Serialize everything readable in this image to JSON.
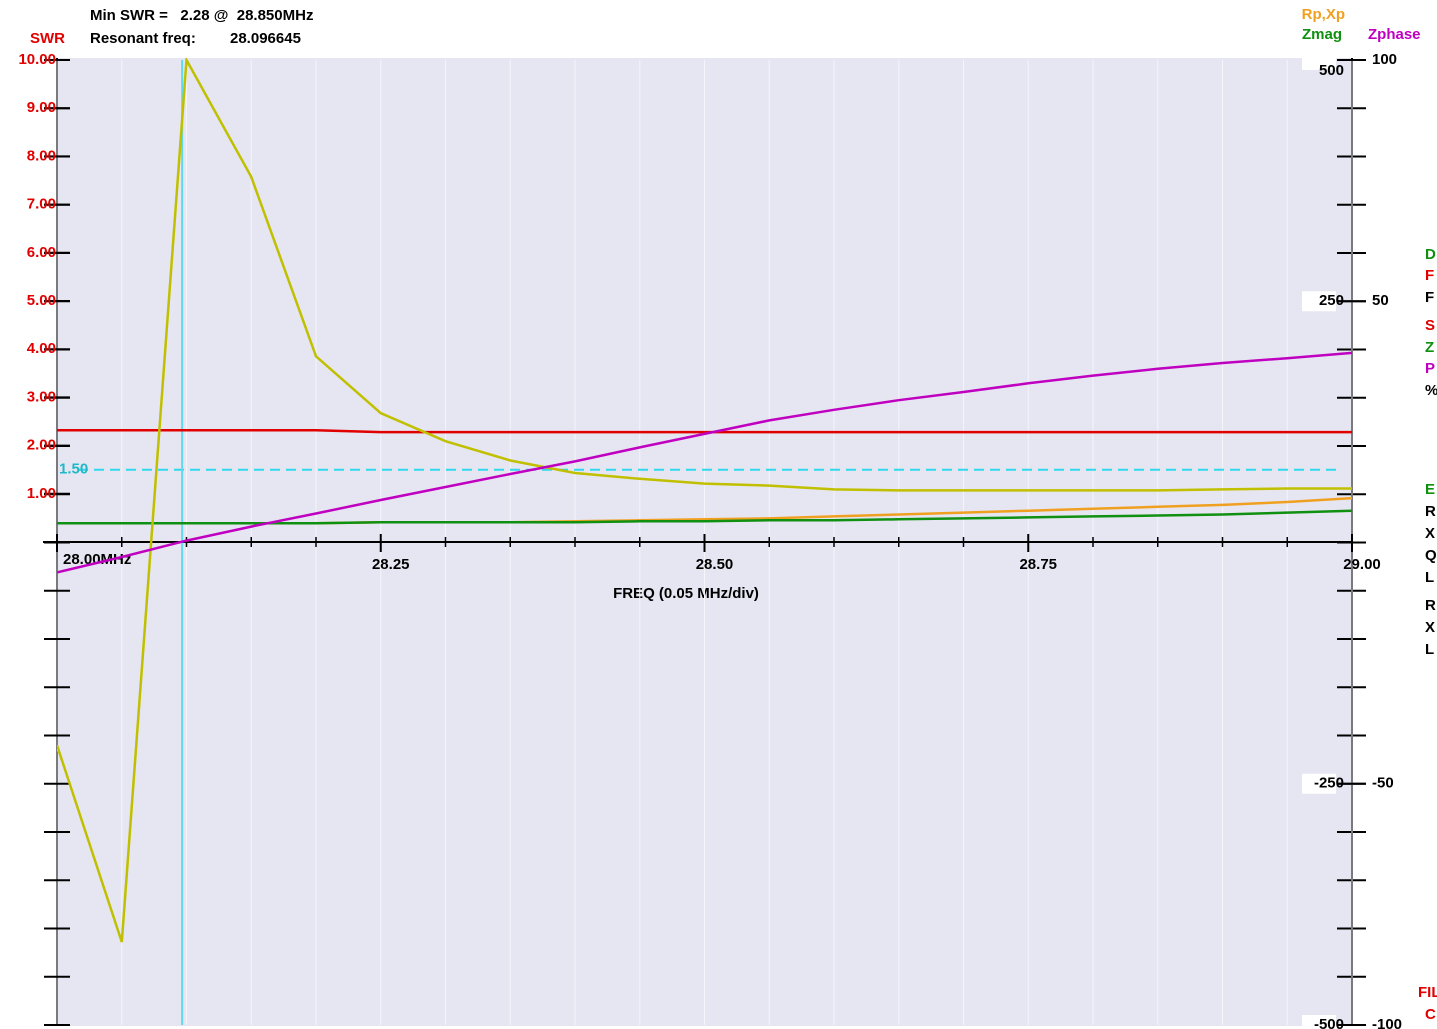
{
  "chart_data": {
    "type": "line",
    "min_swr_text": "Min SWR =   2.28 @  28.850MHz",
    "resonant_label": "Resonant freq:",
    "resonant_freq": 28.096645,
    "y_label": "SWR",
    "y2_label": "Rp,Xp",
    "y2_label_b": "Zmag",
    "y3_label": "Zphase",
    "x_label": "FREQ (0.05 MHz/div)",
    "x": [
      28.0,
      28.05,
      28.1,
      28.15,
      28.2,
      28.25,
      28.3,
      28.35,
      28.4,
      28.45,
      28.5,
      28.55,
      28.6,
      28.65,
      28.7,
      28.75,
      28.8,
      28.85,
      28.9,
      28.95,
      29.0
    ],
    "xlim": [
      28.0,
      29.0
    ],
    "xticks": [
      {
        "value": 28.0,
        "label": "28.00MHz"
      },
      28.25,
      {
        "value": 28.5,
        "label": "28.50"
      },
      28.75,
      {
        "value": 29.0,
        "label": "29.00"
      }
    ],
    "ylim": [
      0,
      10
    ],
    "yticks": [
      {
        "value": 1,
        "label": "1.00"
      },
      {
        "value": 2,
        "label": "2.00"
      },
      {
        "value": 3,
        "label": "3.00"
      },
      {
        "value": 4,
        "label": "4.00"
      },
      {
        "value": 5,
        "label": "5.00"
      },
      {
        "value": 6,
        "label": "6.00"
      },
      {
        "value": 7,
        "label": "7.00"
      },
      {
        "value": 8,
        "label": "8.00"
      },
      {
        "value": 9,
        "label": "9.00"
      },
      {
        "value": 10,
        "label": "10.00"
      }
    ],
    "y2lim": [
      -500,
      500
    ],
    "y2ticks": [
      -500,
      -250,
      250,
      500
    ],
    "y3lim": [
      -100,
      100
    ],
    "y3ticks": [
      -100,
      -50,
      50,
      100
    ],
    "reference": {
      "value": 1.5,
      "label": "1.50",
      "color": "#30d8ec"
    },
    "series": [
      {
        "name": "SWR",
        "color": "#e00000",
        "values": [
          2.32,
          2.32,
          2.32,
          2.32,
          2.32,
          2.28,
          2.28,
          2.28,
          2.28,
          2.28,
          2.28,
          2.28,
          2.28,
          2.28,
          2.28,
          2.28,
          2.28,
          2.28,
          2.28,
          2.28,
          2.28
        ]
      },
      {
        "color": "#f0a020",
        "axis": "y2",
        "values": [
          20,
          20,
          20,
          20,
          20,
          21,
          21,
          21,
          22,
          23,
          24,
          25,
          27,
          29,
          31,
          33,
          35,
          37,
          39,
          42,
          46
        ]
      },
      {
        "name": "Zmag",
        "color": "#109010",
        "axis": "y2",
        "values": [
          20,
          20,
          20,
          20,
          20,
          21,
          21,
          21,
          21,
          22,
          22,
          23,
          23,
          24,
          25,
          26,
          27,
          28,
          29,
          31,
          33
        ]
      },
      {
        "color": "#c0c000",
        "axis": "y2",
        "values": [
          -210,
          -414,
          500,
          379,
          193,
          134,
          105,
          85,
          72,
          66,
          61,
          59,
          55,
          54,
          54,
          54,
          54,
          54,
          55,
          56,
          56
        ]
      },
      {
        "name": "Zphase",
        "color": "#c000c0",
        "axis": "y3",
        "values": [
          -6.2,
          -3,
          0.4,
          3.3,
          6,
          8.8,
          11.5,
          14.2,
          16.8,
          19.7,
          22.5,
          25.3,
          27.5,
          29.5,
          31.2,
          33,
          34.6,
          36,
          37.2,
          38.2,
          39.3
        ]
      }
    ],
    "side_labels": [
      {
        "text": "D",
        "color": "#109010"
      },
      {
        "text": "F",
        "color": "#e00000"
      },
      {
        "text": "F",
        "color": "#000000"
      },
      {
        "text": "S",
        "color": "#e00000"
      },
      {
        "text": "Z",
        "color": "#109010"
      },
      {
        "text": "P",
        "color": "#c000c0"
      },
      {
        "text": "%",
        "color": "#000000"
      },
      {
        "text": "E",
        "color": "#109010"
      },
      {
        "text": "R",
        "color": "#000000"
      },
      {
        "text": "X",
        "color": "#000000"
      },
      {
        "text": "Q",
        "color": "#000000"
      },
      {
        "text": "L",
        "color": "#000000"
      },
      {
        "text": "R",
        "color": "#000000"
      },
      {
        "text": "X",
        "color": "#000000"
      },
      {
        "text": "L",
        "color": "#000000"
      },
      {
        "text": "FIL",
        "color": "#e00000"
      },
      {
        "text": "C",
        "color": "#e00000"
      }
    ]
  }
}
